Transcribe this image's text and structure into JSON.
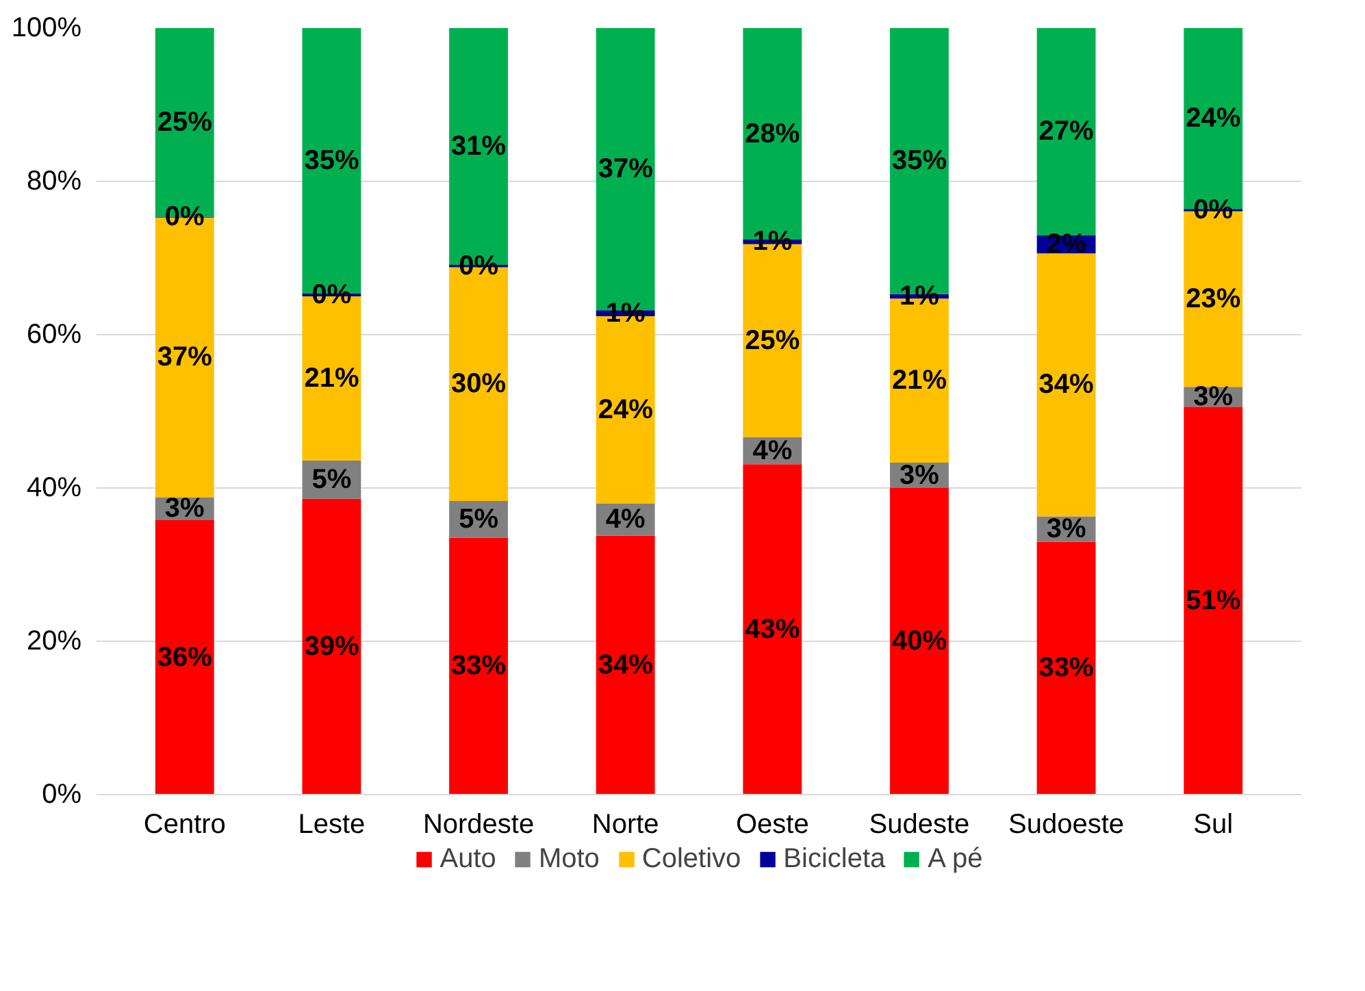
{
  "chart_data": {
    "type": "bar",
    "stacked": true,
    "categories": [
      "Centro",
      "Leste",
      "Nordeste",
      "Norte",
      "Oeste",
      "Sudeste",
      "Sudoeste",
      "Sul"
    ],
    "series": [
      {
        "name": "Auto",
        "color": "#ff0000",
        "values": [
          35.8,
          38.6,
          33.5,
          33.8,
          43.1,
          40.0,
          33.0,
          50.6
        ],
        "value_labels": [
          "36%",
          "39%",
          "33%",
          "34%",
          "43%",
          "40%",
          "33%",
          "51%"
        ]
      },
      {
        "name": "Moto",
        "color": "#808080",
        "values": [
          3.0,
          5.0,
          4.8,
          4.2,
          3.5,
          3.3,
          3.3,
          2.6
        ],
        "value_labels": [
          "3%",
          "5%",
          "5%",
          "4%",
          "4%",
          "3%",
          "3%",
          "3%"
        ]
      },
      {
        "name": "Coletivo",
        "color": "#ffc000",
        "values": [
          36.5,
          21.4,
          30.5,
          24.4,
          25.2,
          21.4,
          34.3,
          22.9
        ],
        "value_labels": [
          "37%",
          "21%",
          "30%",
          "24%",
          "25%",
          "21%",
          "34%",
          "23%"
        ]
      },
      {
        "name": "Bicicleta",
        "color": "#000099",
        "values": [
          0.1,
          0.4,
          0.3,
          0.8,
          0.6,
          0.6,
          2.4,
          0.3
        ],
        "value_labels": [
          "0%",
          "0%",
          "0%",
          "1%",
          "1%",
          "1%",
          "2%",
          "0%"
        ]
      },
      {
        "name": "A pé",
        "color": "#00b050",
        "values": [
          24.6,
          34.6,
          30.9,
          36.8,
          27.6,
          34.7,
          27.0,
          23.6
        ],
        "value_labels": [
          "25%",
          "35%",
          "31%",
          "37%",
          "28%",
          "35%",
          "27%",
          "24%"
        ]
      }
    ],
    "ylim": [
      0,
      100
    ],
    "yticks": [
      {
        "value": 0,
        "label": "0%"
      },
      {
        "value": 20,
        "label": "20%"
      },
      {
        "value": 40,
        "label": "40%"
      },
      {
        "value": 60,
        "label": "60%"
      },
      {
        "value": 80,
        "label": "80%"
      },
      {
        "value": 100,
        "label": "100%"
      }
    ],
    "grid": "y",
    "legend": "bottom"
  }
}
